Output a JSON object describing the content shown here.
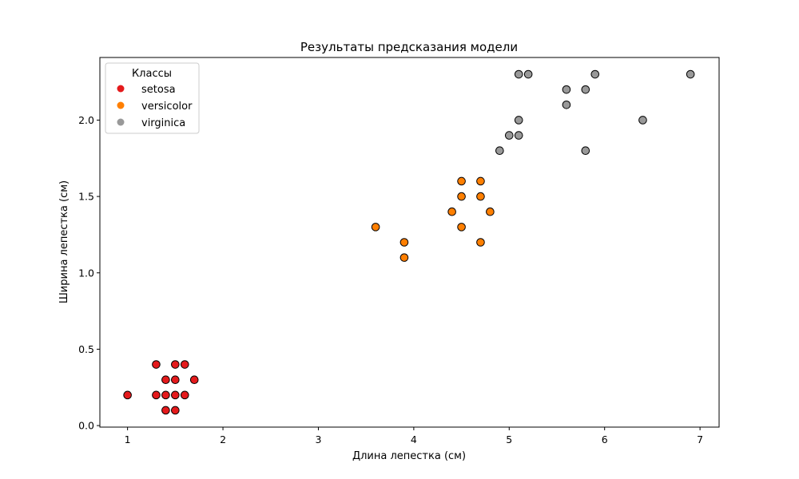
{
  "chart_data": {
    "type": "scatter",
    "title": "Результаты предсказания модели",
    "xlabel": "Длина лепестка (см)",
    "ylabel": "Ширина лепестка (см)",
    "xlim": [
      0.71,
      7.2
    ],
    "ylim": [
      -0.01,
      2.41
    ],
    "x_ticks": [
      1,
      2,
      3,
      4,
      5,
      6,
      7
    ],
    "x_tick_labels": [
      "1",
      "2",
      "3",
      "4",
      "5",
      "6",
      "7"
    ],
    "y_ticks": [
      0.0,
      0.5,
      1.0,
      1.5,
      2.0
    ],
    "y_tick_labels": [
      "0.0",
      "0.5",
      "1.0",
      "1.5",
      "2.0"
    ],
    "grid": false,
    "legend": {
      "title": "Классы",
      "placement": "top-left"
    },
    "series": [
      {
        "name": "setosa",
        "color": "#e41a1c",
        "points": [
          [
            1.0,
            0.2
          ],
          [
            1.3,
            0.2
          ],
          [
            1.3,
            0.4
          ],
          [
            1.4,
            0.1
          ],
          [
            1.4,
            0.2
          ],
          [
            1.4,
            0.3
          ],
          [
            1.5,
            0.1
          ],
          [
            1.5,
            0.2
          ],
          [
            1.5,
            0.3
          ],
          [
            1.5,
            0.4
          ],
          [
            1.6,
            0.2
          ],
          [
            1.6,
            0.4
          ],
          [
            1.7,
            0.3
          ]
        ]
      },
      {
        "name": "versicolor",
        "color": "#ff7f00",
        "points": [
          [
            3.6,
            1.3
          ],
          [
            3.9,
            1.1
          ],
          [
            3.9,
            1.2
          ],
          [
            4.4,
            1.4
          ],
          [
            4.5,
            1.3
          ],
          [
            4.5,
            1.5
          ],
          [
            4.5,
            1.6
          ],
          [
            4.7,
            1.2
          ],
          [
            4.7,
            1.5
          ],
          [
            4.7,
            1.6
          ],
          [
            4.8,
            1.4
          ]
        ]
      },
      {
        "name": "virginica",
        "color": "#999999",
        "points": [
          [
            4.9,
            1.8
          ],
          [
            5.0,
            1.9
          ],
          [
            5.1,
            1.9
          ],
          [
            5.1,
            2.0
          ],
          [
            5.1,
            2.3
          ],
          [
            5.2,
            2.3
          ],
          [
            5.6,
            2.1
          ],
          [
            5.6,
            2.2
          ],
          [
            5.8,
            1.8
          ],
          [
            5.8,
            2.2
          ],
          [
            5.9,
            2.3
          ],
          [
            6.4,
            2.0
          ],
          [
            6.9,
            2.3
          ]
        ]
      }
    ]
  }
}
